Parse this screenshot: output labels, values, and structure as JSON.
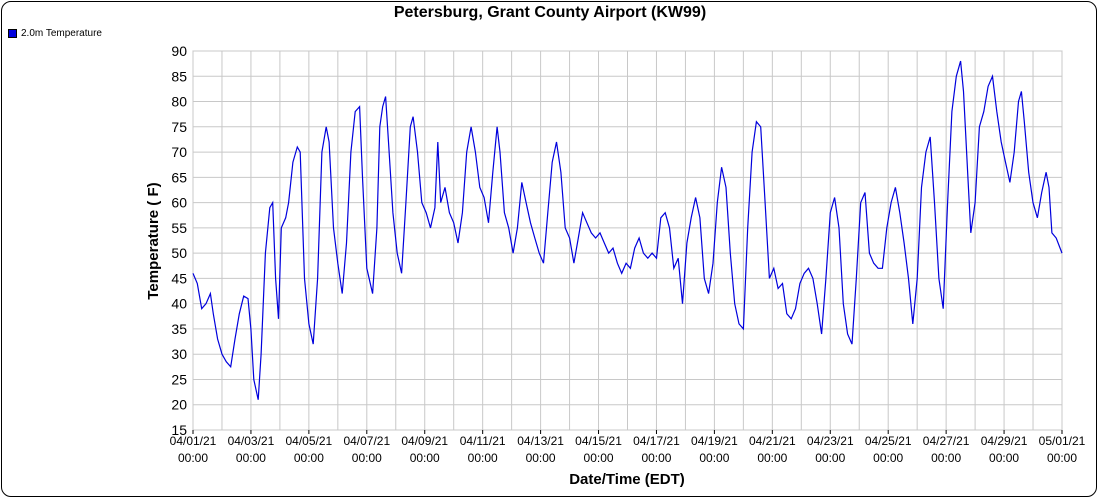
{
  "chart_data": {
    "type": "line",
    "title": "Petersburg, Grant County Airport (KW99)",
    "xlabel": "Date/Time (EDT)",
    "ylabel": "Temperature ( F)",
    "ylim": [
      15,
      90
    ],
    "yticks": [
      15,
      20,
      25,
      30,
      35,
      40,
      45,
      50,
      55,
      60,
      65,
      70,
      75,
      80,
      85,
      90
    ],
    "xlim_days": [
      0,
      30
    ],
    "xticks": [
      {
        "day": 0,
        "date": "04/01/21",
        "time": "00:00"
      },
      {
        "day": 2,
        "date": "04/03/21",
        "time": "00:00"
      },
      {
        "day": 4,
        "date": "04/05/21",
        "time": "00:00"
      },
      {
        "day": 6,
        "date": "04/07/21",
        "time": "00:00"
      },
      {
        "day": 8,
        "date": "04/09/21",
        "time": "00:00"
      },
      {
        "day": 10,
        "date": "04/11/21",
        "time": "00:00"
      },
      {
        "day": 12,
        "date": "04/13/21",
        "time": "00:00"
      },
      {
        "day": 14,
        "date": "04/15/21",
        "time": "00:00"
      },
      {
        "day": 16,
        "date": "04/17/21",
        "time": "00:00"
      },
      {
        "day": 18,
        "date": "04/19/21",
        "time": "00:00"
      },
      {
        "day": 20,
        "date": "04/21/21",
        "time": "00:00"
      },
      {
        "day": 22,
        "date": "04/23/21",
        "time": "00:00"
      },
      {
        "day": 24,
        "date": "04/25/21",
        "time": "00:00"
      },
      {
        "day": 26,
        "date": "04/27/21",
        "time": "00:00"
      },
      {
        "day": 28,
        "date": "04/29/21",
        "time": "00:00"
      },
      {
        "day": 30,
        "date": "05/01/21",
        "time": "00:00"
      }
    ],
    "grid": true,
    "legend_position": "top-left",
    "series": [
      {
        "name": "2.0m Temperature",
        "color": "#0000dd",
        "points": [
          [
            0.0,
            46
          ],
          [
            0.15,
            44
          ],
          [
            0.3,
            39
          ],
          [
            0.45,
            40
          ],
          [
            0.6,
            42
          ],
          [
            0.7,
            38
          ],
          [
            0.85,
            33
          ],
          [
            1.0,
            30
          ],
          [
            1.15,
            28.5
          ],
          [
            1.3,
            27.5
          ],
          [
            1.45,
            33
          ],
          [
            1.6,
            38
          ],
          [
            1.75,
            41.5
          ],
          [
            1.9,
            41
          ],
          [
            2.0,
            35
          ],
          [
            2.1,
            25
          ],
          [
            2.25,
            21
          ],
          [
            2.35,
            30
          ],
          [
            2.5,
            50
          ],
          [
            2.65,
            59
          ],
          [
            2.75,
            60
          ],
          [
            2.85,
            45
          ],
          [
            2.95,
            37
          ],
          [
            3.05,
            55
          ],
          [
            3.2,
            57
          ],
          [
            3.3,
            60
          ],
          [
            3.45,
            68
          ],
          [
            3.6,
            71
          ],
          [
            3.7,
            70
          ],
          [
            3.85,
            45
          ],
          [
            4.0,
            36
          ],
          [
            4.15,
            32
          ],
          [
            4.3,
            45
          ],
          [
            4.45,
            70
          ],
          [
            4.6,
            75
          ],
          [
            4.7,
            72
          ],
          [
            4.85,
            55
          ],
          [
            5.0,
            48
          ],
          [
            5.15,
            42
          ],
          [
            5.3,
            52
          ],
          [
            5.45,
            70
          ],
          [
            5.6,
            78
          ],
          [
            5.75,
            79
          ],
          [
            5.85,
            65
          ],
          [
            6.0,
            47
          ],
          [
            6.2,
            42
          ],
          [
            6.35,
            55
          ],
          [
            6.45,
            75
          ],
          [
            6.55,
            79
          ],
          [
            6.65,
            81
          ],
          [
            6.75,
            72
          ],
          [
            6.9,
            58
          ],
          [
            7.05,
            50
          ],
          [
            7.2,
            46
          ],
          [
            7.35,
            60
          ],
          [
            7.5,
            75
          ],
          [
            7.6,
            77
          ],
          [
            7.75,
            70
          ],
          [
            7.9,
            60
          ],
          [
            8.05,
            58
          ],
          [
            8.2,
            55
          ],
          [
            8.35,
            59
          ],
          [
            8.45,
            72
          ],
          [
            8.55,
            60
          ],
          [
            8.7,
            63
          ],
          [
            8.85,
            58
          ],
          [
            9.0,
            56
          ],
          [
            9.15,
            52
          ],
          [
            9.3,
            58
          ],
          [
            9.45,
            70
          ],
          [
            9.6,
            75
          ],
          [
            9.75,
            70
          ],
          [
            9.9,
            63
          ],
          [
            10.05,
            61
          ],
          [
            10.2,
            56
          ],
          [
            10.35,
            66
          ],
          [
            10.5,
            75
          ],
          [
            10.6,
            70
          ],
          [
            10.75,
            58
          ],
          [
            10.9,
            55
          ],
          [
            11.05,
            50
          ],
          [
            11.2,
            55
          ],
          [
            11.35,
            64
          ],
          [
            11.5,
            60
          ],
          [
            11.65,
            56
          ],
          [
            11.8,
            53
          ],
          [
            11.95,
            50
          ],
          [
            12.1,
            48
          ],
          [
            12.25,
            58
          ],
          [
            12.4,
            68
          ],
          [
            12.55,
            72
          ],
          [
            12.7,
            66
          ],
          [
            12.85,
            55
          ],
          [
            13.0,
            53
          ],
          [
            13.15,
            48
          ],
          [
            13.3,
            53
          ],
          [
            13.45,
            58
          ],
          [
            13.6,
            56
          ],
          [
            13.75,
            54
          ],
          [
            13.9,
            53
          ],
          [
            14.05,
            54
          ],
          [
            14.2,
            52
          ],
          [
            14.35,
            50
          ],
          [
            14.5,
            51
          ],
          [
            14.65,
            48
          ],
          [
            14.8,
            46
          ],
          [
            14.95,
            48
          ],
          [
            15.1,
            47
          ],
          [
            15.25,
            51
          ],
          [
            15.4,
            53
          ],
          [
            15.55,
            50
          ],
          [
            15.7,
            49
          ],
          [
            15.85,
            50
          ],
          [
            16.0,
            49
          ],
          [
            16.15,
            57
          ],
          [
            16.3,
            58
          ],
          [
            16.45,
            55
          ],
          [
            16.6,
            47
          ],
          [
            16.75,
            49
          ],
          [
            16.9,
            40
          ],
          [
            17.05,
            52
          ],
          [
            17.2,
            57
          ],
          [
            17.35,
            61
          ],
          [
            17.5,
            57
          ],
          [
            17.65,
            45
          ],
          [
            17.8,
            42
          ],
          [
            17.95,
            48
          ],
          [
            18.1,
            60
          ],
          [
            18.25,
            67
          ],
          [
            18.4,
            63
          ],
          [
            18.55,
            50
          ],
          [
            18.7,
            40
          ],
          [
            18.85,
            36
          ],
          [
            19.0,
            35
          ],
          [
            19.15,
            55
          ],
          [
            19.3,
            70
          ],
          [
            19.45,
            76
          ],
          [
            19.6,
            75
          ],
          [
            19.75,
            60
          ],
          [
            19.9,
            45
          ],
          [
            20.05,
            47
          ],
          [
            20.2,
            43
          ],
          [
            20.35,
            44
          ],
          [
            20.5,
            38
          ],
          [
            20.65,
            37
          ],
          [
            20.8,
            39
          ],
          [
            20.95,
            44
          ],
          [
            21.1,
            46
          ],
          [
            21.25,
            47
          ],
          [
            21.4,
            45
          ],
          [
            21.55,
            40
          ],
          [
            21.7,
            34
          ],
          [
            21.85,
            45
          ],
          [
            22.0,
            58
          ],
          [
            22.15,
            61
          ],
          [
            22.3,
            55
          ],
          [
            22.45,
            40
          ],
          [
            22.6,
            34
          ],
          [
            22.75,
            32
          ],
          [
            22.9,
            45
          ],
          [
            23.05,
            60
          ],
          [
            23.2,
            62
          ],
          [
            23.35,
            50
          ],
          [
            23.5,
            48
          ],
          [
            23.65,
            47
          ],
          [
            23.8,
            47
          ],
          [
            23.95,
            55
          ],
          [
            24.1,
            60
          ],
          [
            24.25,
            63
          ],
          [
            24.4,
            58
          ],
          [
            24.55,
            52
          ],
          [
            24.7,
            45
          ],
          [
            24.85,
            36
          ],
          [
            25.0,
            45
          ],
          [
            25.15,
            63
          ],
          [
            25.3,
            70
          ],
          [
            25.45,
            73
          ],
          [
            25.6,
            60
          ],
          [
            25.75,
            45
          ],
          [
            25.9,
            39
          ],
          [
            26.05,
            60
          ],
          [
            26.2,
            78
          ],
          [
            26.35,
            85
          ],
          [
            26.5,
            88
          ],
          [
            26.6,
            82
          ],
          [
            26.75,
            65
          ],
          [
            26.85,
            54
          ],
          [
            27.0,
            60
          ],
          [
            27.15,
            75
          ],
          [
            27.3,
            78
          ],
          [
            27.45,
            83
          ],
          [
            27.6,
            85
          ],
          [
            27.75,
            78
          ],
          [
            27.9,
            72
          ],
          [
            28.05,
            68
          ],
          [
            28.2,
            64
          ],
          [
            28.35,
            70
          ],
          [
            28.5,
            80
          ],
          [
            28.6,
            82
          ],
          [
            28.7,
            76
          ],
          [
            28.85,
            66
          ],
          [
            29.0,
            60
          ],
          [
            29.15,
            57
          ],
          [
            29.3,
            62
          ],
          [
            29.45,
            66
          ],
          [
            29.55,
            63
          ],
          [
            29.65,
            54
          ],
          [
            29.8,
            53
          ],
          [
            30.0,
            50
          ]
        ]
      }
    ]
  }
}
